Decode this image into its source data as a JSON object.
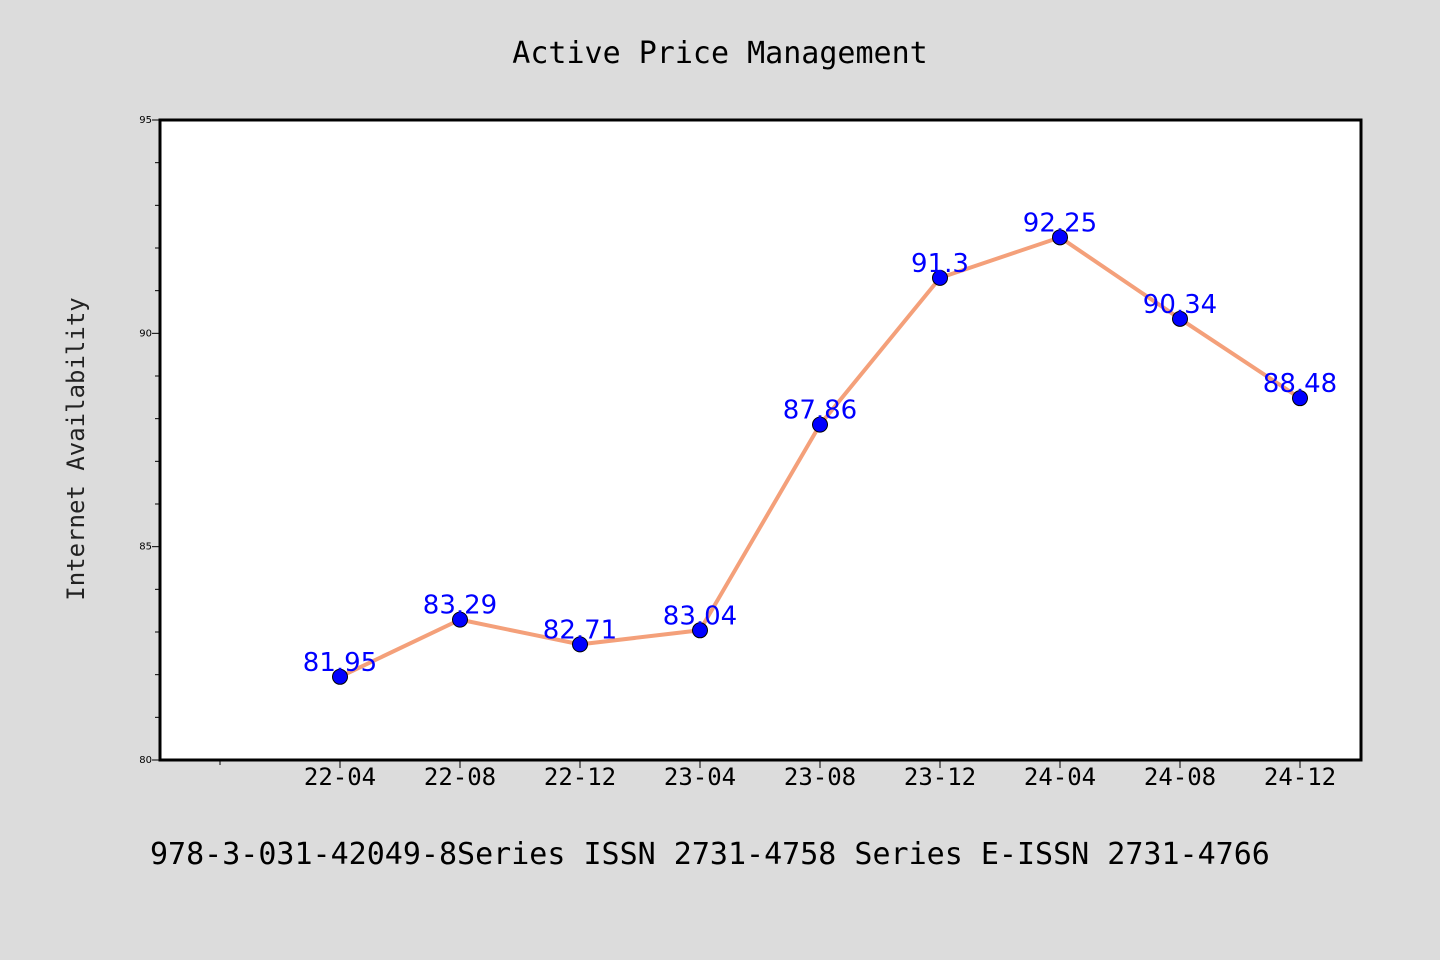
{
  "chart_data": {
    "type": "line",
    "title": "Active Price Management",
    "xlabel": "",
    "ylabel": "Internet Availability",
    "categories": [
      "22-04",
      "22-08",
      "22-12",
      "23-04",
      "23-08",
      "23-12",
      "24-04",
      "24-08",
      "24-12"
    ],
    "series": [
      {
        "values": [
          81.95,
          83.29,
          82.71,
          83.04,
          87.86,
          91.3,
          92.25,
          90.34,
          88.48
        ],
        "labels": [
          "81.95",
          "83.29",
          "82.71",
          "83.04",
          "87.86",
          "91.3",
          "92.25",
          "90.34",
          "88.48"
        ],
        "line_color": "#f4a07a",
        "marker_color": "#0000ff"
      }
    ],
    "yticks": [
      "80",
      "85",
      "90",
      "95"
    ],
    "ylim": [
      80,
      95
    ],
    "grid": false,
    "plot_background": "#ffffff",
    "figure_background": "#dcdcdc"
  },
  "footer": {
    "text": "978-3-031-42049-8Series ISSN 2731-4758 Series E-ISSN 2731-4766"
  }
}
